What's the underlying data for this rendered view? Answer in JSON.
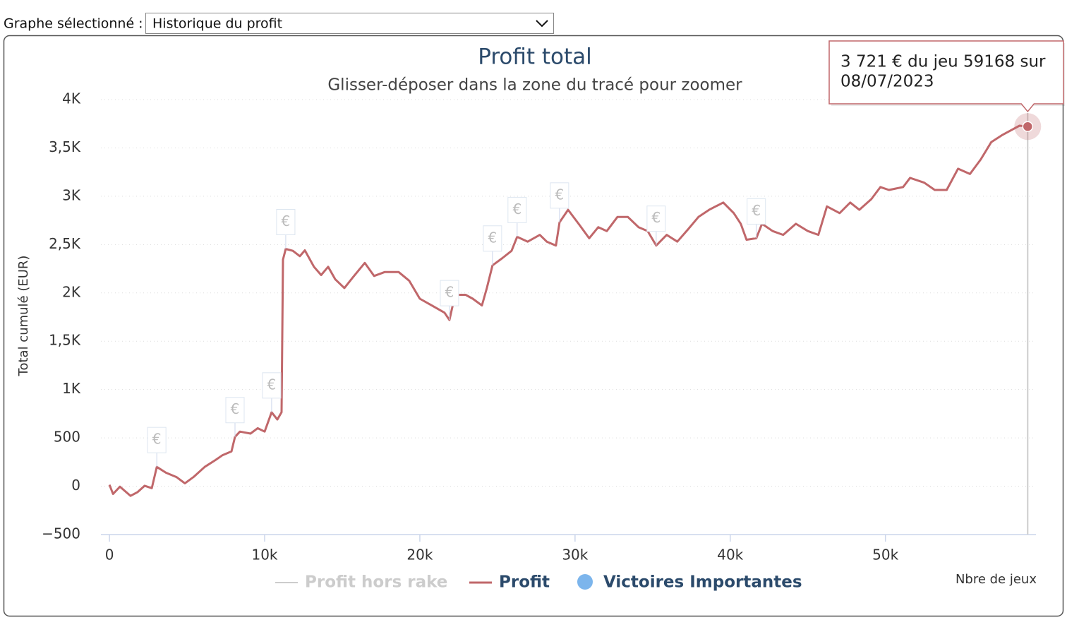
{
  "ui": {
    "selector_label": "Graphe sélectionné :",
    "selector_value": "Historique du profit"
  },
  "chart_data": {
    "type": "line",
    "title": "Profit total",
    "subtitle": "Glisser-déposer dans la zone du tracé pour zoomer",
    "y_label": "Total cumulé (EUR)",
    "x_label": "Nbre de jeux",
    "xlim": [
      -550,
      59700
    ],
    "ylim": [
      -500,
      4000
    ],
    "xticks": [
      0,
      {
        "value": 10000,
        "label": "10k"
      },
      {
        "value": 20000,
        "label": "20k"
      },
      {
        "value": 30000,
        "label": "30k"
      },
      {
        "value": 40000,
        "label": "40k"
      },
      {
        "value": 50000,
        "label": "50k"
      }
    ],
    "yticks": [
      {
        "value": -500,
        "label": "−500"
      },
      0,
      500,
      {
        "value": 1000,
        "label": "1K"
      },
      {
        "value": 1500,
        "label": "1,5K"
      },
      {
        "value": 2000,
        "label": "2K"
      },
      {
        "value": 2500,
        "label": "2,5K"
      },
      {
        "value": 3000,
        "label": "3K"
      },
      {
        "value": 3500,
        "label": "3,5K"
      },
      {
        "value": 4000,
        "label": "4K"
      }
    ],
    "grid": true,
    "series": [
      {
        "name": "Profit hors rake",
        "color": "#cccccc",
        "visible": false
      },
      {
        "name": "Profit",
        "color": "#c0676a",
        "x": [
          0,
          230,
          680,
          1360,
          1820,
          2270,
          2730,
          3050,
          3640,
          4320,
          4860,
          5450,
          6140,
          6820,
          7270,
          7860,
          8090,
          8410,
          9090,
          9550,
          10000,
          10450,
          10820,
          11090,
          11180,
          11360,
          11820,
          12270,
          12590,
          13180,
          13640,
          14090,
          14550,
          15140,
          15680,
          16450,
          17050,
          17730,
          18640,
          19320,
          20000,
          20770,
          21590,
          21910,
          22270,
          22950,
          23410,
          24000,
          24320,
          24680,
          25320,
          25910,
          26270,
          26950,
          27730,
          28180,
          28770,
          29000,
          29550,
          30230,
          30910,
          31500,
          32050,
          32730,
          33410,
          34090,
          34680,
          35230,
          35910,
          36590,
          37270,
          37950,
          38640,
          39550,
          40230,
          40680,
          41050,
          41680,
          42050,
          42730,
          43410,
          44230,
          45000,
          45680,
          46230,
          47050,
          47730,
          48320,
          49090,
          49680,
          50230,
          51140,
          51590,
          52500,
          53180,
          53950,
          54680,
          55450,
          56140,
          56820,
          57500,
          57950,
          58640,
          59168
        ],
        "values": [
          15,
          -80,
          -5,
          -100,
          -60,
          5,
          -20,
          200,
          140,
          95,
          30,
          100,
          200,
          270,
          320,
          360,
          510,
          565,
          545,
          600,
          565,
          765,
          690,
          765,
          2345,
          2455,
          2435,
          2380,
          2440,
          2270,
          2185,
          2270,
          2140,
          2050,
          2160,
          2310,
          2175,
          2215,
          2215,
          2125,
          1940,
          1870,
          1795,
          1720,
          1980,
          1980,
          1940,
          1870,
          2050,
          2285,
          2360,
          2435,
          2580,
          2530,
          2600,
          2530,
          2490,
          2730,
          2860,
          2715,
          2565,
          2680,
          2640,
          2785,
          2785,
          2680,
          2640,
          2490,
          2600,
          2530,
          2655,
          2785,
          2860,
          2935,
          2825,
          2715,
          2550,
          2565,
          2715,
          2640,
          2600,
          2715,
          2640,
          2600,
          2895,
          2825,
          2935,
          2860,
          2970,
          3095,
          3065,
          3095,
          3190,
          3140,
          3065,
          3065,
          3285,
          3230,
          3380,
          3560,
          3630,
          3670,
          3730,
          3721
        ]
      },
      {
        "name": "Victoires Importantes",
        "color": "#7cb5ec",
        "flag_label": "€",
        "x": [
          3050,
          8090,
          10450,
          11360,
          21910,
          24680,
          26270,
          29000,
          35230,
          41680
        ],
        "values": [
          200,
          510,
          765,
          2455,
          1720,
          2285,
          2580,
          2730,
          2490,
          2565
        ]
      }
    ],
    "tooltip": {
      "text": "3 721 € du jeu 59168 sur",
      "date": "08/07/2023"
    }
  }
}
